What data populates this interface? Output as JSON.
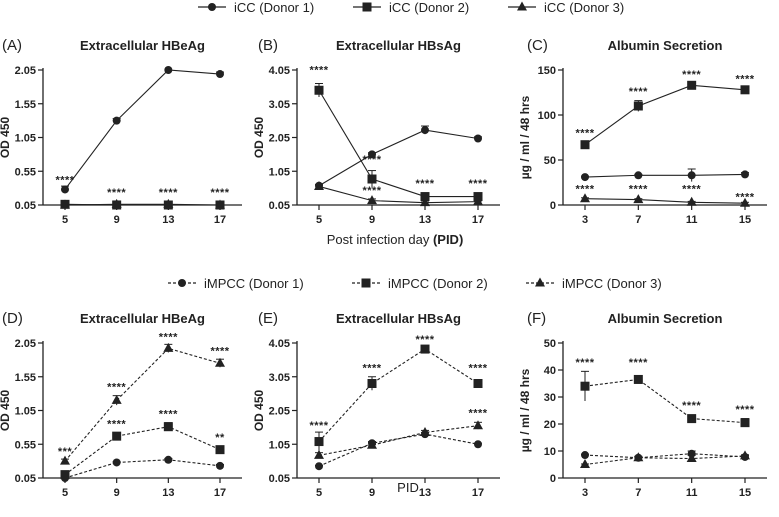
{
  "figure": {
    "legends": {
      "icc": [
        {
          "name": "iCC (Donor 1)",
          "marker": "circle"
        },
        {
          "name": "iCC (Donor 2)",
          "marker": "square"
        },
        {
          "name": "iCC (Donor 3)",
          "marker": "triangle"
        }
      ],
      "impcc": [
        {
          "name": "iMPCC (Donor 1)",
          "marker": "circle"
        },
        {
          "name": "iMPCC (Donor 2)",
          "marker": "square"
        },
        {
          "name": "iMPCC (Donor 3)",
          "marker": "triangle"
        }
      ]
    },
    "shared_xlabels": {
      "top_prefix": "Post infection day ",
      "top_bold": "(PID)",
      "bottom": "PID"
    }
  },
  "chart_data": [
    {
      "id": "A",
      "panel_label": "(A)",
      "type": "line",
      "title": "Extracellular HBeAg",
      "xlabel": "",
      "ylabel": "OD 450",
      "categories": [
        "5",
        "9",
        "13",
        "17"
      ],
      "yticks": [
        "0.05",
        "0.55",
        "1.05",
        "1.55",
        "2.05"
      ],
      "ylim": [
        0.05,
        2.05
      ],
      "dashed": false,
      "series": [
        {
          "name": "iCC (Donor 1)",
          "marker": "circle",
          "values": [
            0.28,
            1.3,
            2.05,
            1.99
          ],
          "err": [
            0.05,
            0.03,
            0.0,
            0.03
          ]
        },
        {
          "name": "iCC (Donor 2)",
          "marker": "square",
          "values": [
            0.06,
            0.05,
            0.05,
            0.05
          ],
          "err": [
            0.0,
            0.02,
            0.0,
            0.0
          ]
        },
        {
          "name": "iCC (Donor 3)",
          "marker": "triangle",
          "values": [
            0.05,
            0.06,
            0.06,
            0.05
          ],
          "err": [
            0.0,
            0.05,
            0.03,
            0.0
          ]
        }
      ],
      "annotations": [
        {
          "x": "5",
          "y": 0.37,
          "text": "****"
        },
        {
          "x": "9",
          "y": 0.18,
          "text": "****"
        },
        {
          "x": "13",
          "y": 0.18,
          "text": "****"
        },
        {
          "x": "17",
          "y": 0.18,
          "text": "****"
        }
      ]
    },
    {
      "id": "B",
      "panel_label": "(B)",
      "type": "line",
      "title": "Extracellular HBsAg",
      "xlabel": "",
      "ylabel": "OD 450",
      "categories": [
        "5",
        "9",
        "13",
        "17"
      ],
      "yticks": [
        "0.05",
        "1.05",
        "2.05",
        "3.05",
        "4.05"
      ],
      "ylim": [
        0.05,
        4.05
      ],
      "dashed": false,
      "series": [
        {
          "name": "iCC (Donor 1)",
          "marker": "circle",
          "values": [
            0.62,
            1.55,
            2.27,
            2.02
          ],
          "err": [
            0.04,
            0.05,
            0.12,
            0.05
          ]
        },
        {
          "name": "iCC (Donor 2)",
          "marker": "square",
          "values": [
            3.45,
            0.82,
            0.3,
            0.3
          ],
          "err": [
            0.2,
            0.25,
            0.1,
            0.1
          ]
        },
        {
          "name": "iCC (Donor 3)",
          "marker": "triangle",
          "values": [
            0.6,
            0.18,
            0.12,
            0.15
          ],
          "err": [
            0.02,
            0.05,
            0.02,
            0.02
          ]
        }
      ],
      "annotations": [
        {
          "x": "5",
          "y": 3.95,
          "text": "****"
        },
        {
          "x": "9",
          "y": 1.3,
          "text": "****"
        },
        {
          "x": "9",
          "y": 0.38,
          "text": "****"
        },
        {
          "x": "13",
          "y": 0.58,
          "text": "****"
        },
        {
          "x": "17",
          "y": 0.58,
          "text": "****"
        }
      ]
    },
    {
      "id": "C",
      "panel_label": "(C)",
      "type": "line",
      "title": "Albumin Secretion",
      "xlabel": "",
      "ylabel": "µg / ml / 48 hrs",
      "categories": [
        "3",
        "7",
        "11",
        "15"
      ],
      "yticks": [
        "0",
        "50",
        "100",
        "150"
      ],
      "ylim": [
        0,
        150
      ],
      "dashed": false,
      "series": [
        {
          "name": "iCC (Donor 1)",
          "marker": "circle",
          "values": [
            31,
            33,
            33,
            34
          ],
          "err": [
            1,
            1,
            7,
            2
          ]
        },
        {
          "name": "iCC (Donor 2)",
          "marker": "square",
          "values": [
            67,
            110,
            133,
            128
          ],
          "err": [
            2,
            6,
            2,
            2
          ]
        },
        {
          "name": "iCC (Donor 3)",
          "marker": "triangle",
          "values": [
            7,
            6,
            3,
            2
          ],
          "err": [
            1,
            1,
            1,
            1
          ]
        }
      ],
      "annotations": [
        {
          "x": "3",
          "y": 76,
          "text": "****"
        },
        {
          "x": "7",
          "y": 122,
          "text": "****"
        },
        {
          "x": "11",
          "y": 141,
          "text": "****"
        },
        {
          "x": "15",
          "y": 136,
          "text": "****"
        },
        {
          "x": "3",
          "y": 14,
          "text": "****"
        },
        {
          "x": "7",
          "y": 14,
          "text": "****"
        },
        {
          "x": "11",
          "y": 14,
          "text": "****"
        },
        {
          "x": "15",
          "y": 5,
          "text": "****"
        }
      ]
    },
    {
      "id": "D",
      "panel_label": "(D)",
      "type": "line",
      "title": "Extracellular HBeAg",
      "xlabel": "",
      "ylabel": "OD 450",
      "categories": [
        "5",
        "9",
        "13",
        "17"
      ],
      "yticks": [
        "0.05",
        "0.55",
        "1.05",
        "1.55",
        "2.05"
      ],
      "ylim": [
        0.05,
        2.05
      ],
      "dashed": true,
      "series": [
        {
          "name": "iMPCC (Donor 1)",
          "marker": "circle",
          "values": [
            0.05,
            0.28,
            0.32,
            0.23
          ],
          "err": [
            0.0,
            0.01,
            0.02,
            0.02
          ]
        },
        {
          "name": "iMPCC (Donor 2)",
          "marker": "square",
          "values": [
            0.1,
            0.67,
            0.81,
            0.47
          ],
          "err": [
            0.03,
            0.04,
            0.06,
            0.05
          ]
        },
        {
          "name": "iMPCC (Donor 3)",
          "marker": "triangle",
          "values": [
            0.3,
            1.2,
            1.97,
            1.75
          ],
          "err": [
            0.03,
            0.07,
            0.06,
            0.06
          ]
        }
      ],
      "annotations": [
        {
          "x": "5",
          "y": 0.39,
          "text": "***"
        },
        {
          "x": "9",
          "y": 1.35,
          "text": "****"
        },
        {
          "x": "9",
          "y": 0.8,
          "text": "****"
        },
        {
          "x": "13",
          "y": 2.09,
          "text": "****"
        },
        {
          "x": "13",
          "y": 0.95,
          "text": "****"
        },
        {
          "x": "17",
          "y": 1.88,
          "text": "****"
        },
        {
          "x": "17",
          "y": 0.6,
          "text": "**"
        }
      ]
    },
    {
      "id": "E",
      "panel_label": "(E)",
      "type": "line",
      "title": "Extracellular HBsAg",
      "xlabel": "",
      "ylabel": "OD 450",
      "categories": [
        "5",
        "9",
        "13",
        "17"
      ],
      "yticks": [
        "0.05",
        "1.05",
        "2.05",
        "3.05",
        "4.05"
      ],
      "ylim": [
        0.05,
        4.05
      ],
      "dashed": true,
      "series": [
        {
          "name": "iMPCC (Donor 1)",
          "marker": "circle",
          "values": [
            0.4,
            1.08,
            1.35,
            1.05
          ],
          "err": [
            0.02,
            0.05,
            0.05,
            0.03
          ]
        },
        {
          "name": "iMPCC (Donor 2)",
          "marker": "square",
          "values": [
            1.13,
            2.85,
            3.87,
            2.85
          ],
          "err": [
            0.28,
            0.2,
            0.1,
            0.1
          ]
        },
        {
          "name": "iMPCC (Donor 3)",
          "marker": "triangle",
          "values": [
            0.72,
            1.02,
            1.4,
            1.6
          ],
          "err": [
            0.08,
            0.08,
            0.06,
            0.1
          ]
        }
      ],
      "annotations": [
        {
          "x": "5",
          "y": 1.5,
          "text": "****"
        },
        {
          "x": "9",
          "y": 3.2,
          "text": "****"
        },
        {
          "x": "13",
          "y": 4.05,
          "text": "****"
        },
        {
          "x": "17",
          "y": 3.2,
          "text": "****"
        },
        {
          "x": "17",
          "y": 1.87,
          "text": "****"
        }
      ]
    },
    {
      "id": "F",
      "panel_label": "(F)",
      "type": "line",
      "title": "Albumin Secretion",
      "xlabel": "",
      "ylabel": "µg / ml / 48 hrs",
      "categories": [
        "3",
        "7",
        "11",
        "15"
      ],
      "yticks": [
        "0",
        "10",
        "20",
        "30",
        "40",
        "50"
      ],
      "ylim": [
        0,
        50
      ],
      "dashed": true,
      "series": [
        {
          "name": "iMPCC (Donor 1)",
          "marker": "circle",
          "values": [
            8.5,
            7.5,
            9,
            7.8
          ],
          "err": [
            0.3,
            0.5,
            1,
            0.5
          ]
        },
        {
          "name": "iMPCC (Donor 2)",
          "marker": "square",
          "values": [
            34,
            36.5,
            22,
            20.5
          ],
          "err": [
            5.5,
            1,
            1.2,
            1.5
          ]
        },
        {
          "name": "iMPCC (Donor 3)",
          "marker": "triangle",
          "values": [
            5,
            7.5,
            7.2,
            8.2
          ],
          "err": [
            0.2,
            0.5,
            1.2,
            0.4
          ]
        }
      ],
      "annotations": [
        {
          "x": "3",
          "y": 41.5,
          "text": "****"
        },
        {
          "x": "7",
          "y": 41.5,
          "text": "****"
        },
        {
          "x": "11",
          "y": 25.5,
          "text": "****"
        },
        {
          "x": "15",
          "y": 24,
          "text": "****"
        }
      ]
    }
  ]
}
